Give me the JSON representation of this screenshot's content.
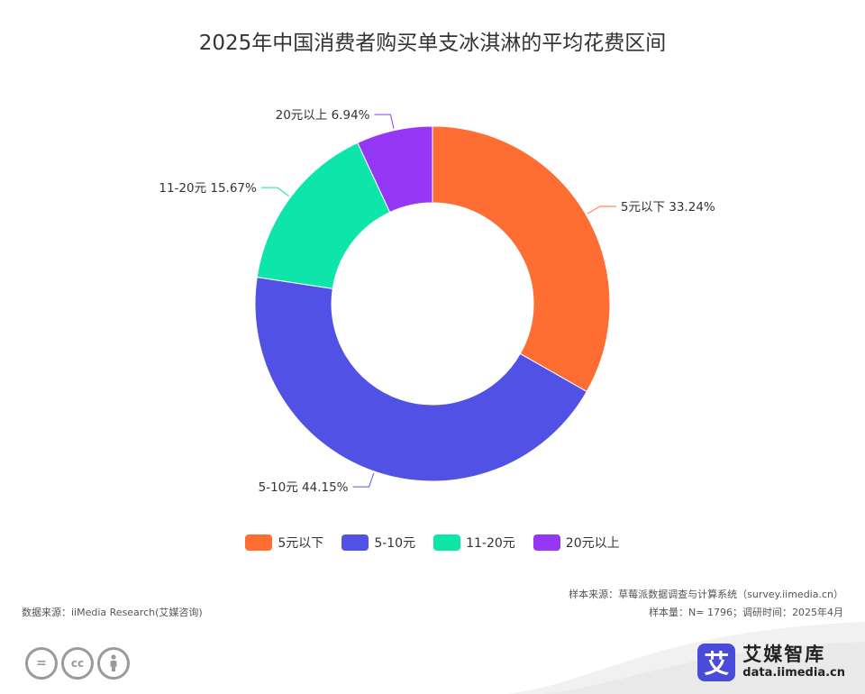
{
  "title": "2025年中国消费者购买单支冰淇淋的平均花费区间",
  "chart_data": {
    "type": "pie",
    "donut": true,
    "title": "2025年中国消费者购买单支冰淇淋的平均花费区间",
    "series": [
      {
        "name": "5元以下",
        "value": 33.24,
        "label": "5元以下 33.24%",
        "color": "#fe6d31"
      },
      {
        "name": "5-10元",
        "value": 44.15,
        "label": "5-10元 44.15%",
        "color": "#5151e6"
      },
      {
        "name": "11-20元",
        "value": 15.67,
        "label": "11-20元 15.67%",
        "color": "#0de5aa"
      },
      {
        "name": "20元以上",
        "value": 6.94,
        "label": "20元以上 6.94%",
        "color": "#9637f5"
      }
    ],
    "legend_position": "bottom-center"
  },
  "legend": [
    {
      "label": "5元以下",
      "color": "#fe6d31"
    },
    {
      "label": "5-10元",
      "color": "#5151e6"
    },
    {
      "label": "11-20元",
      "color": "#0de5aa"
    },
    {
      "label": "20元以上",
      "color": "#9637f5"
    }
  ],
  "footer": {
    "data_source": "数据来源：iiMedia Research(艾媒咨询)",
    "sample_source": "样本来源：草莓派数据调查与计算系统（survey.iimedia.cn）",
    "sample_size": "样本量：N= 1796；调研时间：2025年4月",
    "cc_icons": [
      "equals-icon",
      "cc-icon",
      "person-icon"
    ],
    "brand_logo_char": "艾",
    "brand_name": "艾媒智库",
    "brand_url": "data.iimedia.cn"
  }
}
